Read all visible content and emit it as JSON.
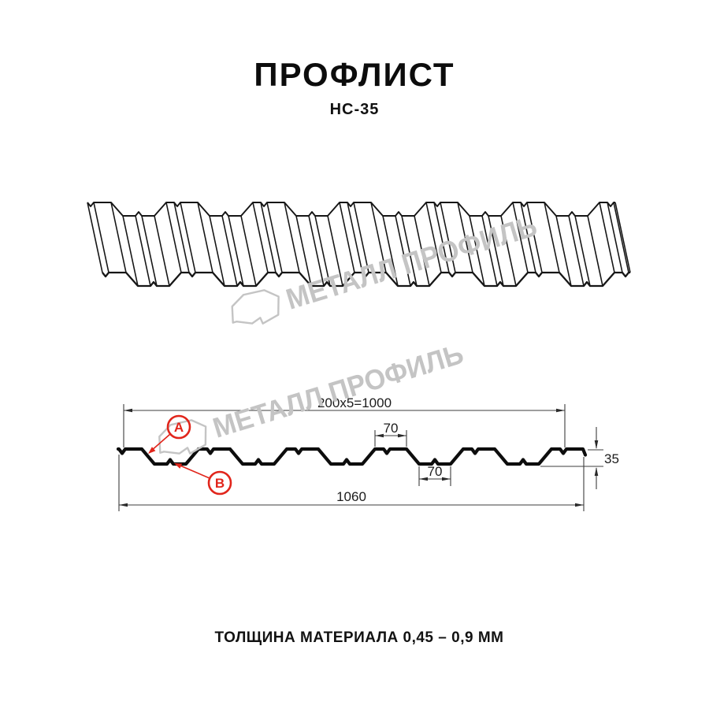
{
  "page": {
    "title": "ПРОФЛИСТ",
    "subtitle": "НС-35",
    "caption": "ТОЛЩИНА МАТЕРИАЛА 0,45 – 0,9 ММ"
  },
  "watermark": {
    "text": "МЕТАЛЛ ПРОФИЛЬ",
    "color": "#c4c4c4"
  },
  "diagram": {
    "dimensions": {
      "coverage_width": "200x5=1000",
      "overall_width": "1060",
      "crest_width": "70",
      "trough_width": "70",
      "profile_height": "35"
    },
    "labels": {
      "a": "A",
      "b": "B"
    },
    "annotation_color": "#e1251b",
    "line_color": "#161616"
  }
}
